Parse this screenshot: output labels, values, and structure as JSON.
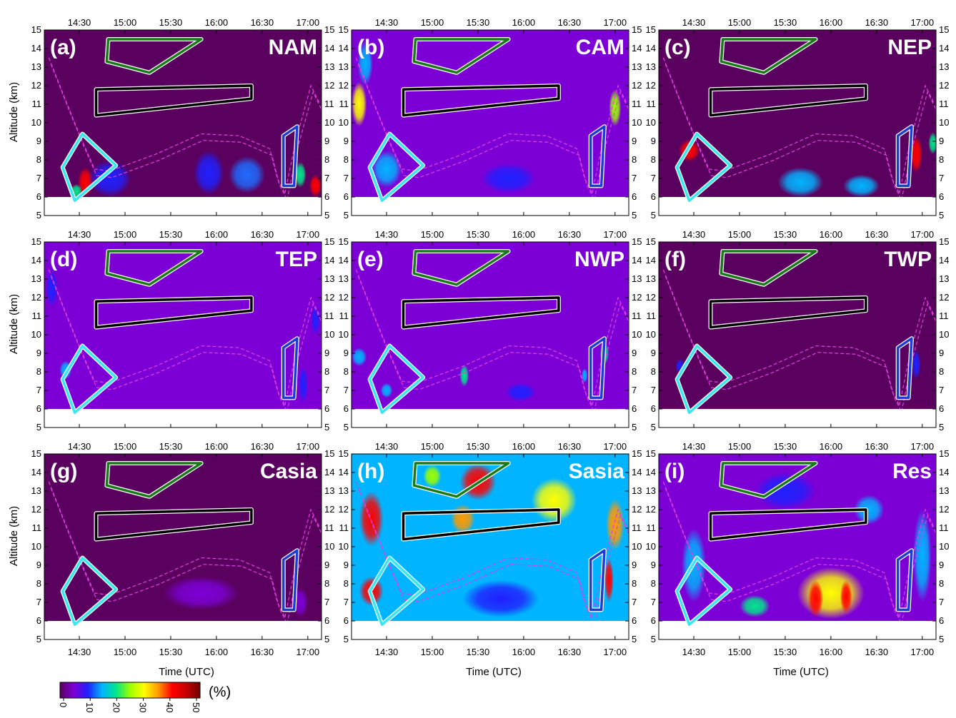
{
  "chart_data": {
    "type": "heatmap",
    "layout": "3x3 panel grid",
    "x_ticks": [
      "14:30",
      "15:00",
      "15:30",
      "16:00",
      "16:30",
      "17:00"
    ],
    "x_tick_minutes": [
      870,
      900,
      930,
      960,
      990,
      1020
    ],
    "x_range_minutes": [
      847,
      1029
    ],
    "xlabel": "Time (UTC)",
    "ylabel": "Altitude (km)",
    "y_ticks": [
      5,
      6,
      7,
      8,
      9,
      10,
      11,
      12,
      13,
      14,
      15
    ],
    "ylim": [
      5,
      15
    ],
    "data_floor_km": 6,
    "colorbar": {
      "title": "(%)",
      "ticks": [
        "0",
        "10",
        "20",
        "30",
        "40",
        "50"
      ],
      "range": [
        0,
        50
      ],
      "colors": [
        "#5a005e",
        "#7c00d6",
        "#2020ff",
        "#00b4ff",
        "#00e68c",
        "#9bff00",
        "#ffff00",
        "#ff9a00",
        "#ff0000",
        "#c80000",
        "#6e0000"
      ]
    },
    "overlay_colors": {
      "green": "#1a7a1a",
      "black": "#000000",
      "cyan": "#38e8f0",
      "blue": "#1e3cd2",
      "dashed": "#e040e0"
    },
    "panels": [
      {
        "label": "(a)",
        "region": "NAM",
        "background": "#5a005e",
        "letter_color": "#ffffff",
        "blobs": [
          {
            "t": 874,
            "alt": 6.8,
            "rx": 5,
            "ry": 0.8,
            "color": "#ff0000"
          },
          {
            "t": 868,
            "alt": 6.3,
            "rx": 4,
            "ry": 0.4,
            "color": "#00e68c"
          },
          {
            "t": 890,
            "alt": 7.0,
            "rx": 14,
            "ry": 1.0,
            "color": "#2020ff"
          },
          {
            "t": 955,
            "alt": 7.3,
            "rx": 10,
            "ry": 1.2,
            "color": "#2020ff"
          },
          {
            "t": 980,
            "alt": 7.2,
            "rx": 12,
            "ry": 1.0,
            "color": "#1e6cff"
          },
          {
            "t": 1015,
            "alt": 7.2,
            "rx": 4,
            "ry": 0.7,
            "color": "#00e68c"
          },
          {
            "t": 1025,
            "alt": 6.6,
            "rx": 4,
            "ry": 0.6,
            "color": "#ff0000"
          }
        ]
      },
      {
        "label": "(b)",
        "region": "CAM",
        "background": "#7c00d6",
        "letter_color": "#000000",
        "blobs": [
          {
            "t": 852,
            "alt": 11.0,
            "rx": 5,
            "ry": 1.2,
            "color": "#ffff00"
          },
          {
            "t": 856,
            "alt": 13.2,
            "rx": 5,
            "ry": 1.2,
            "color": "#00b4ff"
          },
          {
            "t": 1020,
            "alt": 10.8,
            "rx": 4,
            "ry": 1.0,
            "color": "#9bff00"
          },
          {
            "t": 870,
            "alt": 7.5,
            "rx": 10,
            "ry": 1.0,
            "color": "#00b4ff"
          },
          {
            "t": 950,
            "alt": 7.0,
            "rx": 18,
            "ry": 0.8,
            "color": "#2020ff"
          }
        ]
      },
      {
        "label": "(c)",
        "region": "NEP",
        "background": "#5a005e",
        "letter_color": "#ffffff",
        "blobs": [
          {
            "t": 867,
            "alt": 8.5,
            "rx": 7,
            "ry": 0.6,
            "color": "#ff0000"
          },
          {
            "t": 1016,
            "alt": 8.3,
            "rx": 4,
            "ry": 1.0,
            "color": "#ff0000"
          },
          {
            "t": 940,
            "alt": 6.8,
            "rx": 15,
            "ry": 0.8,
            "color": "#00b4ff"
          },
          {
            "t": 980,
            "alt": 6.6,
            "rx": 12,
            "ry": 0.6,
            "color": "#00b4ff"
          },
          {
            "t": 1027,
            "alt": 8.9,
            "rx": 3,
            "ry": 0.6,
            "color": "#00e68c"
          }
        ]
      },
      {
        "label": "(d)",
        "region": "TEP",
        "background": "#7c00d6",
        "letter_color": "#ffffff",
        "blobs": [
          {
            "t": 852,
            "alt": 12.5,
            "rx": 4,
            "ry": 1.0,
            "color": "#2020ff"
          },
          {
            "t": 861,
            "alt": 8.1,
            "rx": 4,
            "ry": 0.5,
            "color": "#00b4ff"
          },
          {
            "t": 1017,
            "alt": 7.3,
            "rx": 3,
            "ry": 1.0,
            "color": "#2020ff"
          },
          {
            "t": 1025,
            "alt": 10.8,
            "rx": 3,
            "ry": 0.8,
            "color": "#2020ff"
          }
        ]
      },
      {
        "label": "(e)",
        "region": "NWP",
        "background": "#7c00d6",
        "letter_color": "#ffffff",
        "blobs": [
          {
            "t": 852,
            "alt": 8.8,
            "rx": 5,
            "ry": 0.5,
            "color": "#00b4ff"
          },
          {
            "t": 921,
            "alt": 7.8,
            "rx": 3,
            "ry": 0.6,
            "color": "#00e68c"
          },
          {
            "t": 958,
            "alt": 6.9,
            "rx": 10,
            "ry": 0.5,
            "color": "#2020ff"
          },
          {
            "t": 1013,
            "alt": 9.0,
            "rx": 3,
            "ry": 0.6,
            "color": "#00e68c"
          },
          {
            "t": 1000,
            "alt": 7.8,
            "rx": 2,
            "ry": 0.4,
            "color": "#00b4ff"
          },
          {
            "t": 870,
            "alt": 7.0,
            "rx": 4,
            "ry": 0.4,
            "color": "#00b4ff"
          }
        ]
      },
      {
        "label": "(f)",
        "region": "TWP",
        "background": "#5a005e",
        "letter_color": "#ffffff",
        "blobs": [
          {
            "t": 861,
            "alt": 8.3,
            "rx": 3,
            "ry": 0.4,
            "color": "#2020ff"
          },
          {
            "t": 1016,
            "alt": 8.4,
            "rx": 3,
            "ry": 0.8,
            "color": "#2020ff"
          }
        ]
      },
      {
        "label": "(g)",
        "region": "Casia",
        "background": "#5a005e",
        "letter_color": "#ffffff",
        "blobs": [
          {
            "t": 950,
            "alt": 7.5,
            "rx": 25,
            "ry": 0.9,
            "color": "#7c00d6"
          },
          {
            "t": 1015,
            "alt": 7.0,
            "rx": 5,
            "ry": 0.8,
            "color": "#7c00d6"
          }
        ]
      },
      {
        "label": "(h)",
        "region": "Sasia",
        "background": "#00b4ff",
        "letter_color": "#000000",
        "blobs": [
          {
            "t": 860,
            "alt": 11.5,
            "rx": 8,
            "ry": 1.5,
            "color": "#ff0000"
          },
          {
            "t": 930,
            "alt": 13.5,
            "rx": 12,
            "ry": 1.0,
            "color": "#ff0000"
          },
          {
            "t": 920,
            "alt": 11.5,
            "rx": 8,
            "ry": 0.8,
            "color": "#ff9a00"
          },
          {
            "t": 980,
            "alt": 12.5,
            "rx": 15,
            "ry": 1.2,
            "color": "#ffff00"
          },
          {
            "t": 1020,
            "alt": 11.2,
            "rx": 6,
            "ry": 1.4,
            "color": "#ff9a00"
          },
          {
            "t": 860,
            "alt": 7.6,
            "rx": 8,
            "ry": 0.8,
            "color": "#ff0000"
          },
          {
            "t": 1016,
            "alt": 8.2,
            "rx": 3,
            "ry": 1.2,
            "color": "#ff0000"
          },
          {
            "t": 945,
            "alt": 7.2,
            "rx": 25,
            "ry": 1.0,
            "color": "#2020ff"
          },
          {
            "t": 900,
            "alt": 13.8,
            "rx": 6,
            "ry": 0.6,
            "color": "#9bff00"
          }
        ]
      },
      {
        "label": "(i)",
        "region": "Res",
        "background": "#7c00d6",
        "letter_color": "#ffffff",
        "blobs": [
          {
            "t": 960,
            "alt": 7.5,
            "rx": 22,
            "ry": 1.4,
            "color": "#ffff00"
          },
          {
            "t": 950,
            "alt": 7.2,
            "rx": 5,
            "ry": 1.0,
            "color": "#ff0000"
          },
          {
            "t": 970,
            "alt": 7.3,
            "rx": 4,
            "ry": 0.9,
            "color": "#ff0000"
          },
          {
            "t": 910,
            "alt": 6.8,
            "rx": 10,
            "ry": 0.6,
            "color": "#00e68c"
          },
          {
            "t": 870,
            "alt": 9.0,
            "rx": 8,
            "ry": 2.0,
            "color": "#00b4ff"
          },
          {
            "t": 1020,
            "alt": 9.5,
            "rx": 6,
            "ry": 2.5,
            "color": "#00b4ff"
          },
          {
            "t": 930,
            "alt": 13.0,
            "rx": 20,
            "ry": 1.0,
            "color": "#2020ff"
          },
          {
            "t": 985,
            "alt": 12.0,
            "rx": 10,
            "ry": 0.8,
            "color": "#00b4ff"
          }
        ]
      }
    ]
  }
}
